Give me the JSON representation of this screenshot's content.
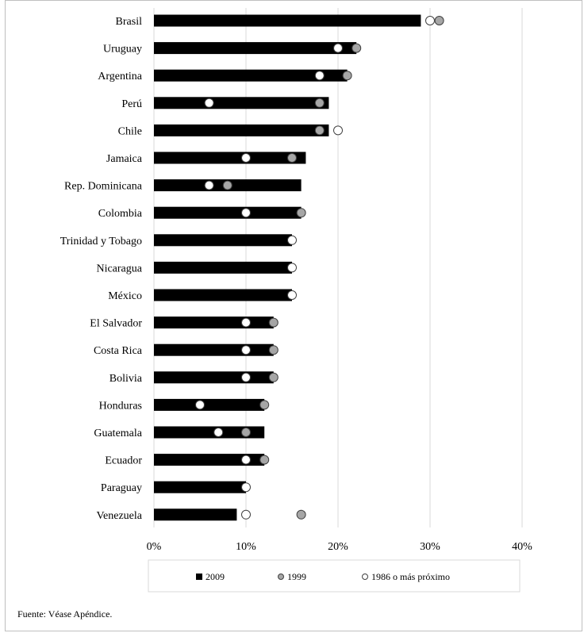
{
  "chart_data": {
    "type": "bar",
    "orientation": "horizontal",
    "categories": [
      "Brasil",
      "Uruguay",
      "Argentina",
      "Perú",
      "Chile",
      "Jamaica",
      "Rep. Dominicana",
      "Colombia",
      "Trinidad y Tobago",
      "Nicaragua",
      "México",
      "El Salvador",
      "Costa Rica",
      "Bolivia",
      "Honduras",
      "Guatemala",
      "Ecuador",
      "Paraguay",
      "Venezuela"
    ],
    "series": [
      {
        "name": "2009",
        "kind": "bar",
        "color": "#000000",
        "values": [
          29,
          22,
          21,
          19,
          19,
          16.5,
          16,
          16,
          15,
          15,
          15,
          13,
          13,
          13,
          12,
          12,
          12,
          10,
          9
        ]
      },
      {
        "name": "1999",
        "kind": "marker",
        "color": "#a6a6a6",
        "values": [
          31,
          22,
          21,
          18,
          18,
          15,
          8,
          16,
          null,
          null,
          null,
          13,
          13,
          13,
          12,
          10,
          12,
          null,
          16
        ]
      },
      {
        "name": "1986 o más próximo",
        "kind": "marker",
        "color": "#ffffff",
        "values": [
          30,
          20,
          18,
          6,
          20,
          10,
          6,
          10,
          15,
          15,
          15,
          10,
          10,
          10,
          5,
          7,
          10,
          10,
          10
        ]
      }
    ],
    "xlim": [
      0,
      40
    ],
    "xticks": [
      "0%",
      "10%",
      "20%",
      "30%",
      "40%"
    ],
    "grid": true,
    "legend_position": "bottom"
  },
  "legend": [
    {
      "label": "2009",
      "icon": "square-icon",
      "color": "#000000"
    },
    {
      "label": "1999",
      "icon": "circle-icon",
      "color": "#a6a6a6"
    },
    {
      "label": "1986 o más próximo",
      "icon": "circle-icon",
      "color": "#ffffff"
    }
  ],
  "source": "Fuente: Véase Apéndice."
}
